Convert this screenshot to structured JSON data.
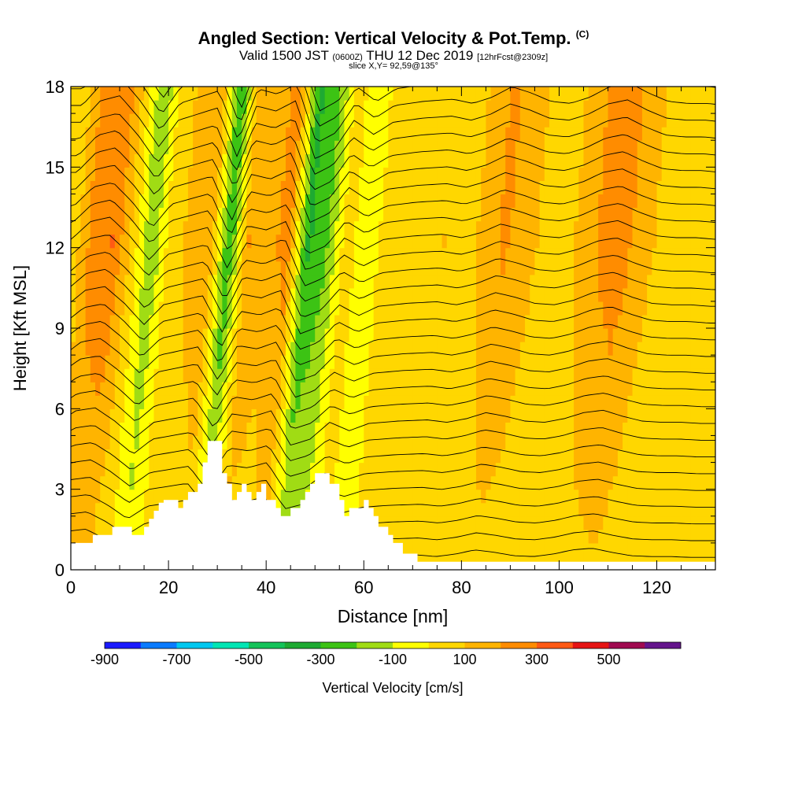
{
  "header": {
    "title": "Angled Section: Vertical Velocity & Pot.Temp.",
    "title_unit": "(C)",
    "valid_prefix": "Valid 1500 JST",
    "valid_utc": "(0600Z)",
    "valid_date": "THU 12 Dec 2019",
    "forecast": "[12hrFcst@2309z]",
    "slice": "slice X,Y= 92,59@135°"
  },
  "chart_data": {
    "type": "heatmap",
    "xlabel": "Distance [nm]",
    "ylabel": "Height [Kft MSL]",
    "xlim": [
      0,
      132
    ],
    "ylim": [
      0,
      18
    ],
    "xticks": [
      "0",
      "20",
      "40",
      "60",
      "80",
      "100",
      "120"
    ],
    "yticks": [
      "0",
      "3",
      "6",
      "9",
      "12",
      "15",
      "18"
    ],
    "colorbar": {
      "label": "Vertical Velocity [cm/s]",
      "tick_labels": [
        "-900",
        "-700",
        "-500",
        "-300",
        "-100",
        "100",
        "300",
        "500"
      ],
      "levels": [
        -900,
        -800,
        -700,
        -600,
        -500,
        -400,
        -300,
        -200,
        -100,
        0,
        100,
        200,
        300,
        400,
        500,
        600
      ],
      "colors": [
        "#1a1aff",
        "#0a7bff",
        "#00c8f0",
        "#00e6b4",
        "#14c35a",
        "#1eaa32",
        "#3cc314",
        "#a0dc14",
        "#ffff00",
        "#ffd700",
        "#ffb400",
        "#ff8c00",
        "#ff5a14",
        "#e61414",
        "#a00a50",
        "#64148c"
      ]
    },
    "series": [
      {
        "x": [
          0,
          4,
          8,
          12,
          16,
          20,
          24,
          28,
          32,
          36,
          40,
          44,
          48,
          52,
          56,
          60,
          64,
          70,
          76,
          80,
          84,
          88,
          92,
          96,
          100,
          104,
          108,
          112,
          116,
          120,
          124,
          128,
          132
        ],
        "values": [
          40,
          250,
          300,
          80,
          -200,
          60,
          120,
          180,
          -300,
          200,
          150,
          250,
          -320,
          -220,
          60,
          -80,
          40,
          80,
          100,
          60,
          120,
          220,
          160,
          80,
          60,
          120,
          220,
          260,
          160,
          80,
          60,
          60,
          40
        ],
        "level_kft": 12
      }
    ],
    "terrain_kft": [
      [
        0,
        1.0
      ],
      [
        4.5,
        1.0
      ],
      [
        4.5,
        1.3
      ],
      [
        8.5,
        1.3
      ],
      [
        8.5,
        1.6
      ],
      [
        12.5,
        1.6
      ],
      [
        12.5,
        1.3
      ],
      [
        15,
        1.3
      ],
      [
        15,
        1.6
      ],
      [
        16,
        1.6
      ],
      [
        16,
        1.9
      ],
      [
        17,
        1.9
      ],
      [
        17,
        2.2
      ],
      [
        18,
        2.2
      ],
      [
        18,
        2.5
      ],
      [
        19,
        2.5
      ],
      [
        19,
        2.6
      ],
      [
        22,
        2.6
      ],
      [
        22,
        2.3
      ],
      [
        23,
        2.3
      ],
      [
        23,
        2.6
      ],
      [
        24,
        2.6
      ],
      [
        24,
        2.9
      ],
      [
        26,
        2.9
      ],
      [
        26,
        3.2
      ],
      [
        27,
        3.2
      ],
      [
        27,
        4.0
      ],
      [
        28,
        4.0
      ],
      [
        28,
        4.8
      ],
      [
        31,
        4.8
      ],
      [
        31,
        3.6
      ],
      [
        32,
        3.6
      ],
      [
        32,
        3.2
      ],
      [
        33,
        3.2
      ],
      [
        33,
        2.6
      ],
      [
        34,
        2.6
      ],
      [
        34,
        2.9
      ],
      [
        35,
        2.9
      ],
      [
        35,
        3.2
      ],
      [
        36,
        3.2
      ],
      [
        36,
        2.9
      ],
      [
        37,
        2.9
      ],
      [
        37,
        2.6
      ],
      [
        38,
        2.6
      ],
      [
        38,
        2.9
      ],
      [
        39,
        2.9
      ],
      [
        39,
        3.2
      ],
      [
        40,
        3.2
      ],
      [
        40,
        2.6
      ],
      [
        42,
        2.6
      ],
      [
        42,
        2.3
      ],
      [
        43,
        2.3
      ],
      [
        43,
        2.0
      ],
      [
        45,
        2.0
      ],
      [
        45,
        2.3
      ],
      [
        47,
        2.3
      ],
      [
        47,
        2.6
      ],
      [
        48,
        2.6
      ],
      [
        48,
        2.9
      ],
      [
        49,
        2.9
      ],
      [
        49,
        3.2
      ],
      [
        50,
        3.2
      ],
      [
        50,
        3.6
      ],
      [
        53,
        3.6
      ],
      [
        53,
        3.2
      ],
      [
        55,
        3.2
      ],
      [
        55,
        2.6
      ],
      [
        56,
        2.6
      ],
      [
        56,
        2.0
      ],
      [
        57,
        2.0
      ],
      [
        57,
        2.3
      ],
      [
        60,
        2.3
      ],
      [
        60,
        2.6
      ],
      [
        61,
        2.6
      ],
      [
        61,
        2.3
      ],
      [
        62,
        2.3
      ],
      [
        62,
        2.0
      ],
      [
        63,
        2.0
      ],
      [
        63,
        1.6
      ],
      [
        65,
        1.6
      ],
      [
        65,
        1.3
      ],
      [
        66,
        1.3
      ],
      [
        66,
        1.0
      ],
      [
        68,
        1.0
      ],
      [
        68,
        0.6
      ],
      [
        71,
        0.6
      ],
      [
        71,
        0.3
      ],
      [
        132,
        0.3
      ]
    ],
    "legend": "bottom",
    "grid": false
  }
}
